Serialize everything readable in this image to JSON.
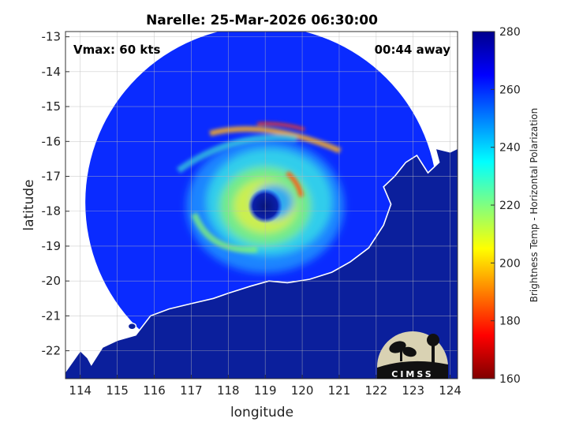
{
  "chart_data": {
    "type": "heatmap",
    "title": "Narelle: 25-Mar-2026 06:30:00",
    "xlabel": "longitude",
    "ylabel": "latitude",
    "xlim": [
      113.6,
      124.2
    ],
    "ylim": [
      -22.8,
      -12.85
    ],
    "xticks": [
      "114",
      "115",
      "116",
      "117",
      "118",
      "119",
      "120",
      "121",
      "122",
      "123",
      "124"
    ],
    "yticks": [
      "-13",
      "-14",
      "-15",
      "-16",
      "-17",
      "-18",
      "-19",
      "-20",
      "-21",
      "-22"
    ],
    "grid": true,
    "annotations": {
      "vmax": "Vmax: 60 kts",
      "away": "00:44 away"
    },
    "storm_center": {
      "lon": 119.0,
      "lat": -17.85
    },
    "swath": {
      "center_lon": 118.9,
      "center_lat": -17.75,
      "radius_lat": 5.05
    },
    "colorbar": {
      "label": "Brightness Temp - Horizontal Polarization",
      "range": [
        160,
        280
      ],
      "ticks": [
        "280",
        "260",
        "240",
        "220",
        "200",
        "180",
        "160"
      ],
      "stops": [
        "#800000",
        "#ff0000",
        "#ff8000",
        "#ffff00",
        "#80ff80",
        "#00ffff",
        "#0080ff",
        "#0000ff",
        "#00008c"
      ]
    },
    "colors": {
      "ocean": "#0a2bff",
      "land": "#0b1f9c",
      "coast": "#ffffff",
      "eye": "#06127a"
    },
    "logo": {
      "text": "CIMSS"
    }
  }
}
